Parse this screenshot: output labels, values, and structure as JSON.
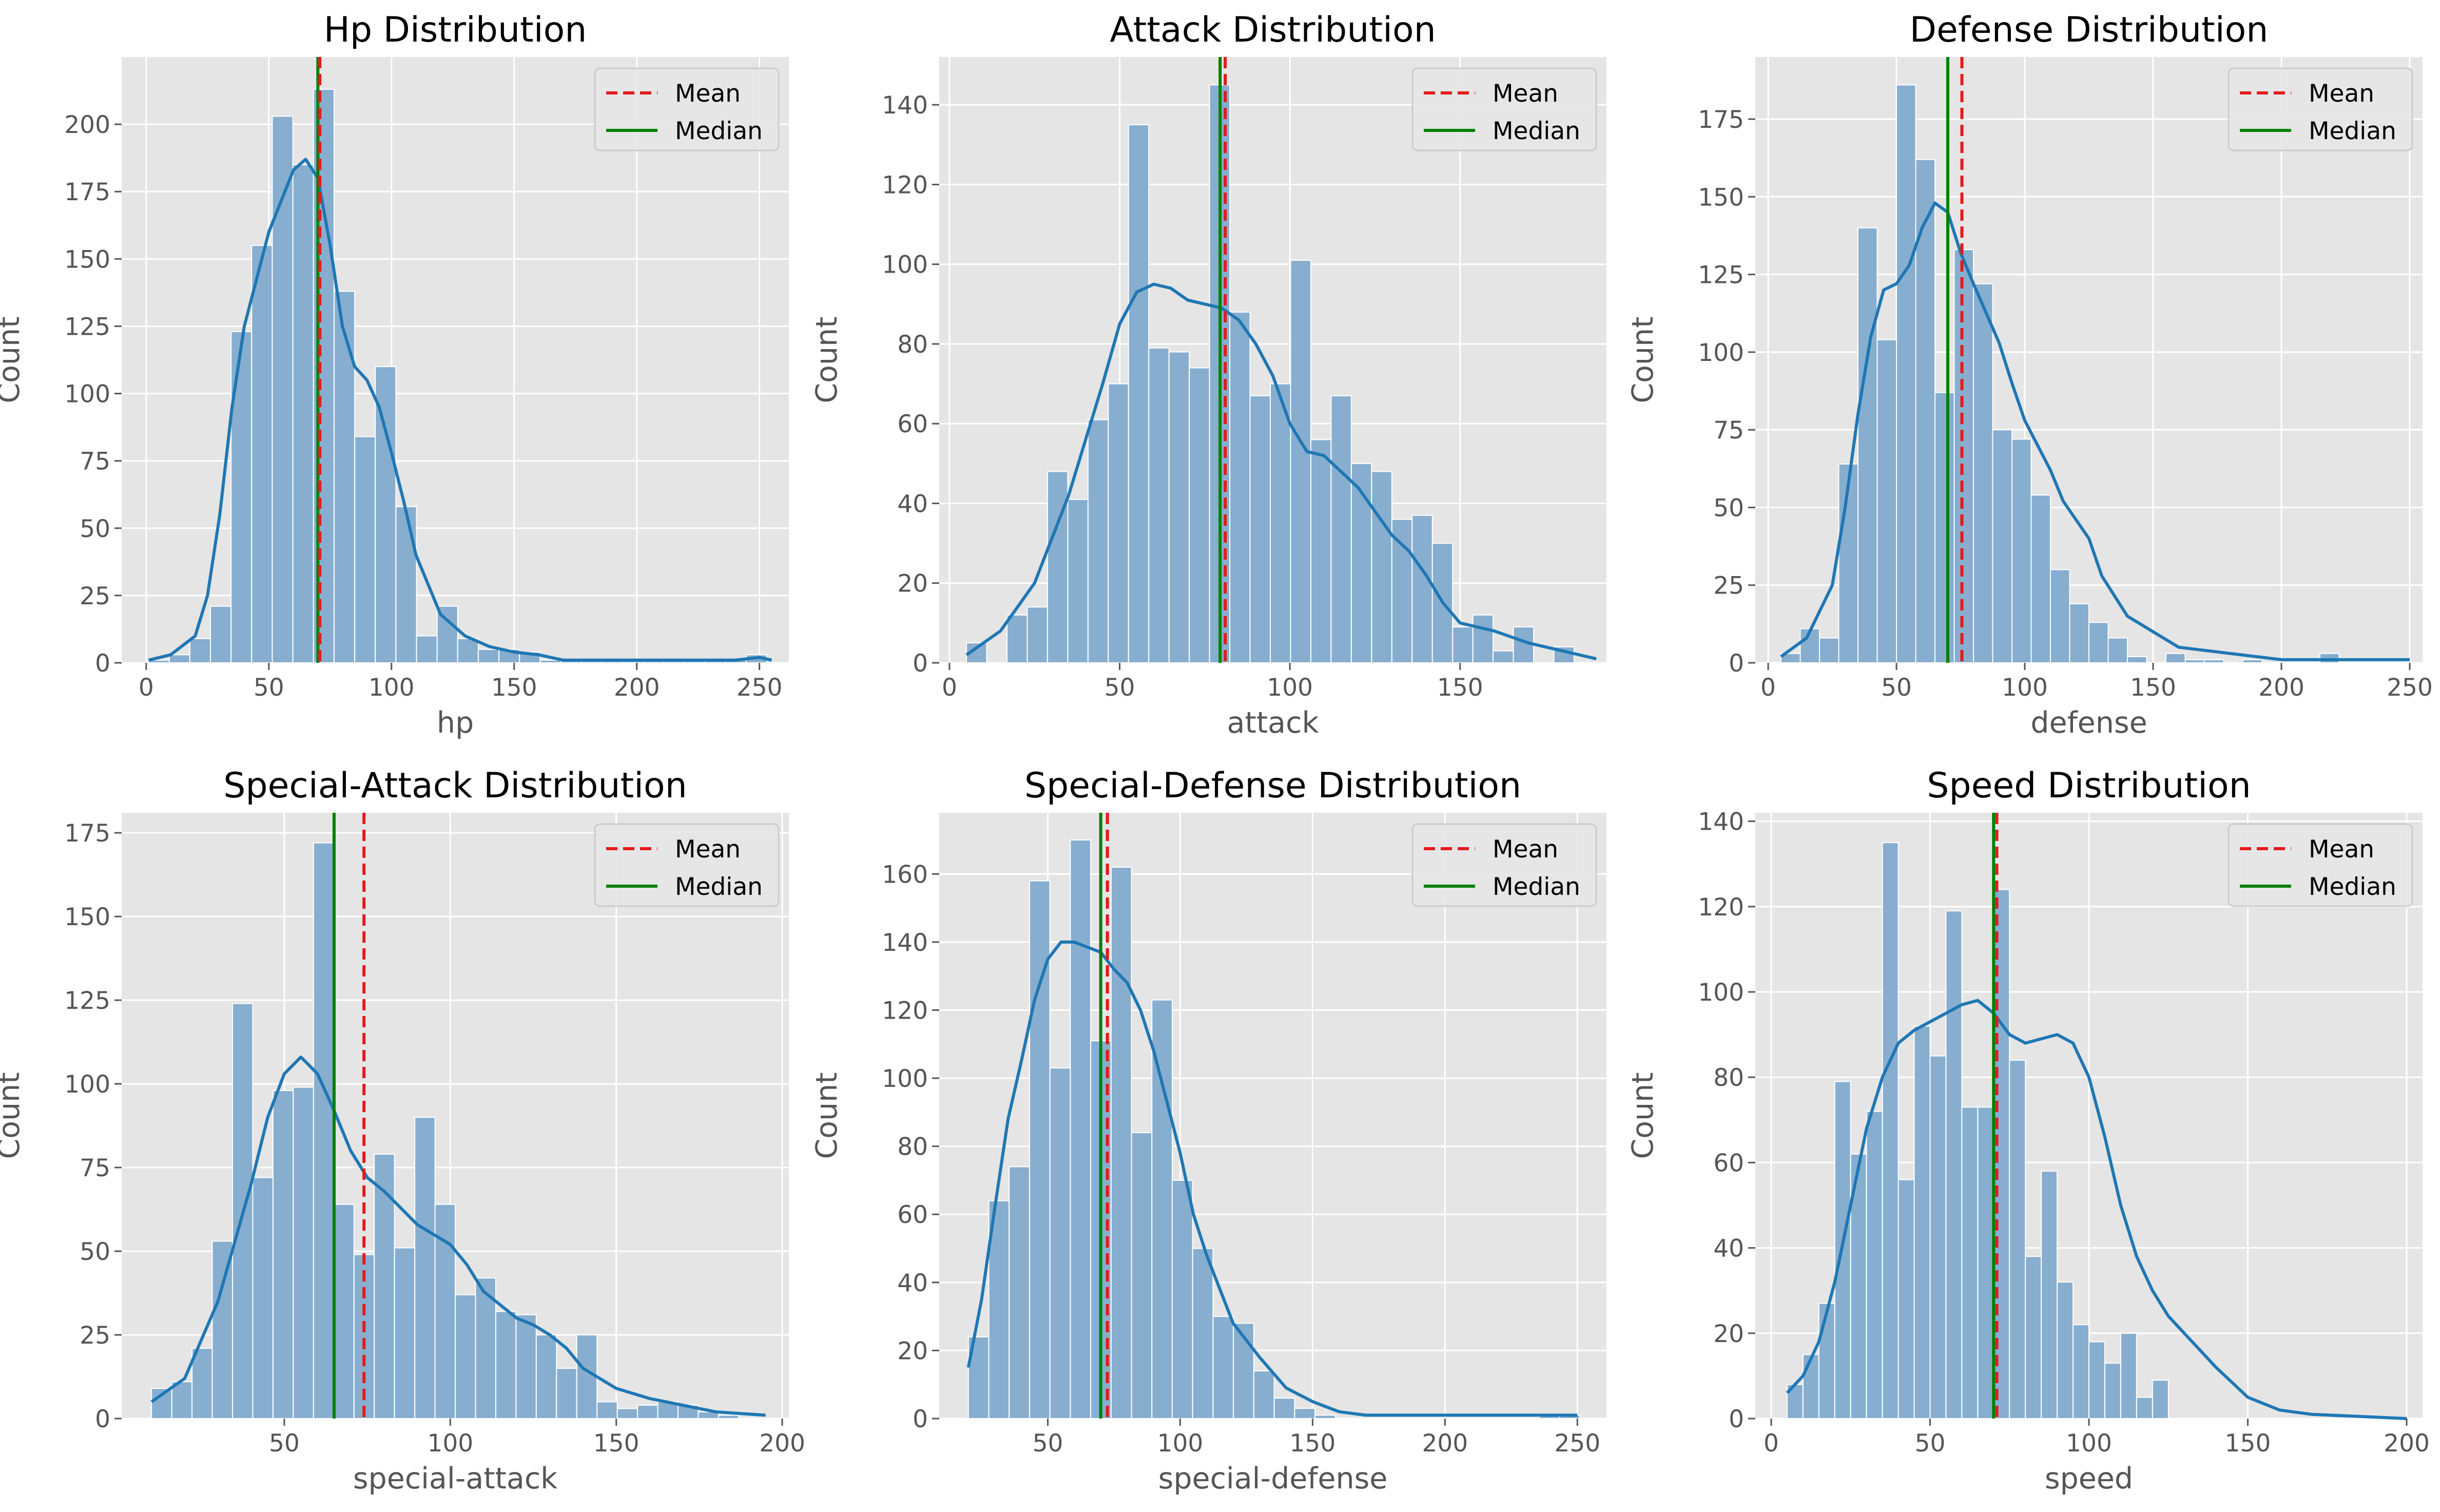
{
  "chart_data": [
    {
      "type": "bar",
      "title": "Hp Distribution",
      "xlabel": "hp",
      "ylabel": "Count",
      "xlim": [
        -10,
        262
      ],
      "ylim": [
        0,
        225
      ],
      "xticks": [
        0,
        50,
        100,
        150,
        200,
        250
      ],
      "yticks": [
        0,
        25,
        50,
        75,
        100,
        125,
        150,
        175,
        200
      ],
      "bins": {
        "start": 1,
        "width": 8.4,
        "counts": [
          1,
          3,
          9,
          21,
          123,
          155,
          203,
          185,
          213,
          138,
          84,
          110,
          58,
          10,
          21,
          9,
          5,
          5,
          4,
          1,
          1,
          1,
          1,
          1,
          1,
          1,
          1,
          1,
          1,
          3
        ]
      },
      "kde": [
        [
          1,
          1
        ],
        [
          10,
          3
        ],
        [
          20,
          10
        ],
        [
          25,
          25
        ],
        [
          30,
          55
        ],
        [
          35,
          95
        ],
        [
          40,
          125
        ],
        [
          50,
          160
        ],
        [
          60,
          183
        ],
        [
          65,
          187
        ],
        [
          70,
          180
        ],
        [
          75,
          155
        ],
        [
          80,
          125
        ],
        [
          85,
          110
        ],
        [
          90,
          105
        ],
        [
          95,
          95
        ],
        [
          100,
          78
        ],
        [
          105,
          60
        ],
        [
          110,
          40
        ],
        [
          120,
          18
        ],
        [
          130,
          10
        ],
        [
          140,
          6
        ],
        [
          150,
          4
        ],
        [
          160,
          3
        ],
        [
          170,
          1
        ],
        [
          200,
          1
        ],
        [
          240,
          1
        ],
        [
          250,
          2
        ],
        [
          255,
          1
        ]
      ],
      "mean": 70.8,
      "median": 70,
      "legend": [
        {
          "label": "Mean",
          "style": "dashed",
          "color": "#e41a1c"
        },
        {
          "label": "Median",
          "style": "solid",
          "color": "#008000"
        }
      ],
      "legend_position": "upper-right",
      "grid": true
    },
    {
      "type": "bar",
      "title": "Attack Distribution",
      "xlabel": "attack",
      "ylabel": "Count",
      "xlim": [
        -3,
        193
      ],
      "ylim": [
        0,
        152
      ],
      "xticks": [
        0,
        50,
        100,
        150
      ],
      "yticks": [
        0,
        20,
        40,
        60,
        80,
        100,
        120,
        140
      ],
      "bins": {
        "start": 5,
        "width": 5.95,
        "counts": [
          5,
          0,
          12,
          14,
          48,
          41,
          61,
          70,
          135,
          79,
          78,
          74,
          145,
          88,
          67,
          70,
          101,
          56,
          67,
          50,
          48,
          36,
          37,
          30,
          9,
          12,
          3,
          9,
          0,
          4
        ]
      },
      "kde": [
        [
          5,
          2
        ],
        [
          15,
          8
        ],
        [
          25,
          20
        ],
        [
          35,
          42
        ],
        [
          45,
          70
        ],
        [
          50,
          85
        ],
        [
          55,
          93
        ],
        [
          60,
          95
        ],
        [
          65,
          94
        ],
        [
          70,
          91
        ],
        [
          75,
          90
        ],
        [
          80,
          89
        ],
        [
          85,
          86
        ],
        [
          90,
          80
        ],
        [
          95,
          72
        ],
        [
          100,
          60
        ],
        [
          105,
          53
        ],
        [
          110,
          52
        ],
        [
          115,
          48
        ],
        [
          120,
          44
        ],
        [
          125,
          38
        ],
        [
          130,
          32
        ],
        [
          135,
          28
        ],
        [
          140,
          22
        ],
        [
          145,
          15
        ],
        [
          150,
          10
        ],
        [
          160,
          8
        ],
        [
          170,
          5
        ],
        [
          180,
          3
        ],
        [
          190,
          1
        ]
      ],
      "mean": 81,
      "median": 79.5,
      "legend": [
        {
          "label": "Mean",
          "style": "dashed",
          "color": "#e41a1c"
        },
        {
          "label": "Median",
          "style": "solid",
          "color": "#008000"
        }
      ],
      "legend_position": "upper-right",
      "grid": true
    },
    {
      "type": "bar",
      "title": "Defense Distribution",
      "xlabel": "defense",
      "ylabel": "Count",
      "xlim": [
        -5,
        255
      ],
      "ylim": [
        0,
        195
      ],
      "xticks": [
        0,
        50,
        100,
        150,
        200,
        250
      ],
      "yticks": [
        0,
        25,
        50,
        75,
        100,
        125,
        150,
        175
      ],
      "bins": {
        "start": 5,
        "width": 7.5,
        "counts": [
          3,
          11,
          8,
          64,
          140,
          104,
          186,
          162,
          87,
          133,
          122,
          75,
          72,
          54,
          30,
          19,
          13,
          8,
          2,
          0,
          3,
          1,
          1,
          0,
          1,
          0,
          0,
          0,
          3,
          0
        ]
      },
      "kde": [
        [
          5,
          2
        ],
        [
          15,
          8
        ],
        [
          25,
          25
        ],
        [
          30,
          50
        ],
        [
          35,
          80
        ],
        [
          40,
          105
        ],
        [
          45,
          120
        ],
        [
          50,
          122
        ],
        [
          55,
          128
        ],
        [
          60,
          140
        ],
        [
          65,
          148
        ],
        [
          70,
          145
        ],
        [
          75,
          132
        ],
        [
          80,
          122
        ],
        [
          90,
          103
        ],
        [
          95,
          90
        ],
        [
          100,
          78
        ],
        [
          110,
          62
        ],
        [
          115,
          52
        ],
        [
          125,
          40
        ],
        [
          130,
          28
        ],
        [
          140,
          15
        ],
        [
          150,
          10
        ],
        [
          160,
          5
        ],
        [
          180,
          3
        ],
        [
          200,
          1
        ],
        [
          240,
          1
        ],
        [
          250,
          1
        ]
      ],
      "mean": 75.5,
      "median": 70,
      "legend": [
        {
          "label": "Mean",
          "style": "dashed",
          "color": "#e41a1c"
        },
        {
          "label": "Median",
          "style": "solid",
          "color": "#008000"
        }
      ],
      "legend_position": "upper-right",
      "grid": true
    },
    {
      "type": "bar",
      "title": "Special-Attack Distribution",
      "xlabel": "special-attack",
      "ylabel": "Count",
      "xlim": [
        1,
        202
      ],
      "ylim": [
        0,
        181
      ],
      "xticks": [
        50,
        100,
        150,
        200
      ],
      "yticks": [
        0,
        25,
        50,
        75,
        100,
        125,
        150,
        175
      ],
      "bins": {
        "start": 10,
        "width": 6.1,
        "counts": [
          9,
          11,
          21,
          53,
          124,
          72,
          98,
          99,
          172,
          64,
          49,
          79,
          51,
          90,
          64,
          37,
          42,
          32,
          31,
          25,
          15,
          25,
          5,
          3,
          4,
          5,
          4,
          2,
          1,
          0
        ]
      },
      "kde": [
        [
          10,
          5
        ],
        [
          20,
          12
        ],
        [
          30,
          35
        ],
        [
          40,
          70
        ],
        [
          45,
          90
        ],
        [
          50,
          103
        ],
        [
          55,
          108
        ],
        [
          60,
          103
        ],
        [
          65,
          92
        ],
        [
          70,
          80
        ],
        [
          75,
          72
        ],
        [
          80,
          68
        ],
        [
          85,
          63
        ],
        [
          90,
          58
        ],
        [
          100,
          52
        ],
        [
          105,
          46
        ],
        [
          110,
          38
        ],
        [
          120,
          30
        ],
        [
          125,
          28
        ],
        [
          130,
          25
        ],
        [
          135,
          21
        ],
        [
          140,
          15
        ],
        [
          150,
          9
        ],
        [
          160,
          6
        ],
        [
          170,
          4
        ],
        [
          180,
          2
        ],
        [
          195,
          1
        ]
      ],
      "mean": 74,
      "median": 65,
      "legend": [
        {
          "label": "Mean",
          "style": "dashed",
          "color": "#e41a1c"
        },
        {
          "label": "Median",
          "style": "solid",
          "color": "#008000"
        }
      ],
      "legend_position": "upper-right",
      "grid": true
    },
    {
      "type": "bar",
      "title": "Special-Defense Distribution",
      "xlabel": "special-defense",
      "ylabel": "Count",
      "xlim": [
        9,
        261
      ],
      "ylim": [
        0,
        178
      ],
      "xticks": [
        50,
        100,
        150,
        200,
        250
      ],
      "yticks": [
        0,
        20,
        40,
        60,
        80,
        100,
        120,
        140,
        160
      ],
      "bins": {
        "start": 20,
        "width": 7.7,
        "counts": [
          24,
          64,
          74,
          158,
          103,
          170,
          111,
          162,
          84,
          123,
          70,
          50,
          30,
          28,
          14,
          6,
          3,
          1,
          0,
          0,
          0,
          0,
          0,
          0,
          0,
          0,
          0,
          0,
          1,
          1
        ]
      },
      "kde": [
        [
          20,
          15
        ],
        [
          25,
          35
        ],
        [
          30,
          62
        ],
        [
          35,
          88
        ],
        [
          40,
          105
        ],
        [
          45,
          123
        ],
        [
          50,
          135
        ],
        [
          55,
          140
        ],
        [
          60,
          140
        ],
        [
          70,
          137
        ],
        [
          75,
          132
        ],
        [
          80,
          128
        ],
        [
          85,
          120
        ],
        [
          90,
          108
        ],
        [
          95,
          93
        ],
        [
          100,
          78
        ],
        [
          105,
          60
        ],
        [
          110,
          48
        ],
        [
          115,
          38
        ],
        [
          120,
          28
        ],
        [
          130,
          18
        ],
        [
          140,
          9
        ],
        [
          150,
          5
        ],
        [
          160,
          2
        ],
        [
          170,
          1
        ],
        [
          200,
          1
        ],
        [
          250,
          1
        ]
      ],
      "mean": 72.5,
      "median": 70,
      "legend": [
        {
          "label": "Mean",
          "style": "dashed",
          "color": "#e41a1c"
        },
        {
          "label": "Median",
          "style": "solid",
          "color": "#008000"
        }
      ],
      "legend_position": "upper-right",
      "grid": true
    },
    {
      "type": "bar",
      "title": "Speed Distribution",
      "xlabel": "speed",
      "ylabel": "Count",
      "xlim": [
        -5,
        205
      ],
      "ylim": [
        0,
        142
      ],
      "xticks": [
        0,
        50,
        100,
        150,
        200
      ],
      "yticks": [
        0,
        20,
        40,
        60,
        80,
        100,
        120,
        140
      ],
      "bins": {
        "start": 5,
        "width": 5.0,
        "counts": [
          8,
          15,
          27,
          79,
          62,
          72,
          135,
          56,
          92,
          85,
          119,
          73,
          73,
          124,
          84,
          38,
          58,
          32,
          22,
          18,
          13,
          20,
          5,
          9,
          0,
          0,
          0,
          0,
          0,
          0
        ]
      },
      "kde": [
        [
          5,
          6
        ],
        [
          10,
          10
        ],
        [
          15,
          18
        ],
        [
          20,
          32
        ],
        [
          25,
          50
        ],
        [
          30,
          68
        ],
        [
          35,
          80
        ],
        [
          40,
          88
        ],
        [
          45,
          91
        ],
        [
          50,
          93
        ],
        [
          55,
          95
        ],
        [
          60,
          97
        ],
        [
          65,
          98
        ],
        [
          70,
          95
        ],
        [
          75,
          90
        ],
        [
          80,
          88
        ],
        [
          85,
          89
        ],
        [
          90,
          90
        ],
        [
          95,
          88
        ],
        [
          100,
          80
        ],
        [
          105,
          66
        ],
        [
          110,
          50
        ],
        [
          115,
          38
        ],
        [
          120,
          30
        ],
        [
          125,
          24
        ],
        [
          130,
          20
        ],
        [
          135,
          16
        ],
        [
          140,
          12
        ],
        [
          150,
          5
        ],
        [
          160,
          2
        ],
        [
          170,
          1
        ],
        [
          200,
          0
        ]
      ],
      "mean": 71,
      "median": 70,
      "legend": [
        {
          "label": "Mean",
          "style": "dashed",
          "color": "#e41a1c"
        },
        {
          "label": "Median",
          "style": "solid",
          "color": "#008000"
        }
      ],
      "legend_position": "upper-right",
      "grid": true
    }
  ],
  "style": {
    "panel_bg": "#e5e5e5",
    "grid": "#ffffff",
    "bar_fill": "#87aecf",
    "bar_edge": "#ffffff",
    "kde": "#1f77b4",
    "mean": "#e41a1c",
    "median": "#008000"
  }
}
